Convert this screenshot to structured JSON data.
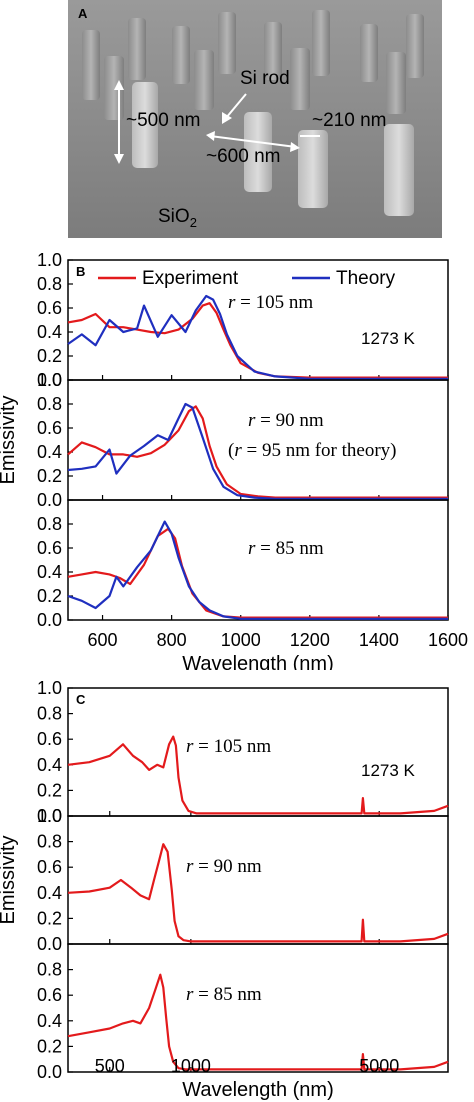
{
  "panel_a": {
    "letter": "A",
    "label_rod": "Si rod",
    "label_height": "~500 nm",
    "label_width": "~210 nm",
    "label_gap": "~600 nm",
    "label_substrate_main": "SiO",
    "label_substrate_sub": "2"
  },
  "colors": {
    "experiment": "#e31a1c",
    "theory": "#1f2fbf"
  },
  "chart_data": [
    {
      "panel": "B",
      "type": "line",
      "xlabel": "Wavelength (nm)",
      "ylabel": "Emissivity",
      "xscale": "linear",
      "xlim": [
        500,
        1600
      ],
      "xticks": [
        600,
        800,
        1000,
        1200,
        1400,
        1600
      ],
      "ylim": [
        0,
        1.0
      ],
      "legend": {
        "placement": "top",
        "entries": [
          "Experiment",
          "Theory"
        ]
      },
      "temperature_label": "1273 K",
      "subplots": [
        {
          "label_r": "r",
          "label_rest": " = 105 nm",
          "yticks": [
            "0.0",
            "0.2",
            "0.4",
            "0.6",
            "0.8",
            "1.0"
          ],
          "series": [
            {
              "name": "Experiment",
              "x": [
                500,
                540,
                580,
                620,
                660,
                700,
                740,
                780,
                820,
                860,
                890,
                910,
                930,
                950,
                970,
                1000,
                1050,
                1100,
                1200,
                1300,
                1400,
                1500,
                1600
              ],
              "y": [
                0.48,
                0.5,
                0.55,
                0.44,
                0.44,
                0.42,
                0.4,
                0.39,
                0.42,
                0.51,
                0.62,
                0.64,
                0.56,
                0.42,
                0.29,
                0.14,
                0.06,
                0.03,
                0.02,
                0.02,
                0.02,
                0.02,
                0.02
              ]
            },
            {
              "name": "Theory",
              "x": [
                500,
                540,
                580,
                620,
                660,
                700,
                720,
                760,
                800,
                840,
                870,
                900,
                920,
                940,
                960,
                990,
                1040,
                1100,
                1200,
                1300,
                1400,
                1500,
                1600
              ],
              "y": [
                0.3,
                0.38,
                0.29,
                0.5,
                0.4,
                0.43,
                0.62,
                0.36,
                0.54,
                0.4,
                0.58,
                0.7,
                0.67,
                0.55,
                0.38,
                0.2,
                0.07,
                0.03,
                0.01,
                0.01,
                0.01,
                0.01,
                0.01
              ]
            }
          ]
        },
        {
          "label_r": "r",
          "label_rest": " = 90 nm",
          "note_pre": "(",
          "note_r": "r",
          "note_rest": " = 95 nm for theory)",
          "yticks": [
            "0.0",
            "0.2",
            "0.4",
            "0.6",
            "0.8",
            "1.0"
          ],
          "series": [
            {
              "name": "Experiment",
              "x": [
                500,
                540,
                580,
                620,
                660,
                700,
                740,
                780,
                820,
                850,
                870,
                890,
                910,
                930,
                960,
                1000,
                1050,
                1100,
                1200,
                1300,
                1400,
                1500,
                1600
              ],
              "y": [
                0.38,
                0.48,
                0.44,
                0.38,
                0.38,
                0.36,
                0.39,
                0.46,
                0.58,
                0.74,
                0.78,
                0.68,
                0.45,
                0.28,
                0.13,
                0.05,
                0.03,
                0.02,
                0.02,
                0.02,
                0.02,
                0.02,
                0.02
              ]
            },
            {
              "name": "Theory",
              "x": [
                500,
                540,
                580,
                620,
                640,
                680,
                720,
                760,
                790,
                820,
                840,
                860,
                890,
                920,
                950,
                990,
                1040,
                1100,
                1200,
                1300,
                1400,
                1500,
                1600
              ],
              "y": [
                0.25,
                0.26,
                0.28,
                0.42,
                0.22,
                0.37,
                0.45,
                0.54,
                0.5,
                0.68,
                0.8,
                0.77,
                0.52,
                0.26,
                0.11,
                0.04,
                0.02,
                0.01,
                0.01,
                0.01,
                0.01,
                0.01,
                0.01
              ]
            }
          ]
        },
        {
          "label_r": "r",
          "label_rest": " = 85 nm",
          "yticks": [
            "0.0",
            "0.2",
            "0.4",
            "0.6",
            "0.8"
          ],
          "series": [
            {
              "name": "Experiment",
              "x": [
                500,
                540,
                580,
                620,
                650,
                680,
                720,
                760,
                790,
                810,
                830,
                860,
                900,
                950,
                1000,
                1100,
                1200,
                1300,
                1400,
                1500,
                1600
              ],
              "y": [
                0.36,
                0.38,
                0.4,
                0.38,
                0.35,
                0.3,
                0.46,
                0.7,
                0.76,
                0.68,
                0.45,
                0.22,
                0.08,
                0.03,
                0.02,
                0.02,
                0.02,
                0.02,
                0.02,
                0.02,
                0.02
              ]
            },
            {
              "name": "Theory",
              "x": [
                500,
                540,
                580,
                620,
                640,
                660,
                700,
                740,
                780,
                800,
                820,
                850,
                880,
                910,
                950,
                1000,
                1100,
                1200,
                1300,
                1400,
                1500,
                1600
              ],
              "y": [
                0.2,
                0.16,
                0.1,
                0.2,
                0.36,
                0.28,
                0.44,
                0.58,
                0.82,
                0.72,
                0.52,
                0.28,
                0.15,
                0.08,
                0.03,
                0.01,
                0.01,
                0.01,
                0.01,
                0.01,
                0.01,
                0.01
              ]
            }
          ]
        }
      ]
    },
    {
      "panel": "C",
      "type": "line",
      "xlabel": "Wavelength (nm)",
      "ylabel": "Emissivity",
      "xscale": "log",
      "xlim": [
        350,
        9000
      ],
      "xticks": [
        500,
        1000,
        5000
      ],
      "ylim": [
        0,
        1.0
      ],
      "temperature_label": "1273 K",
      "subplots": [
        {
          "label_r": "r",
          "label_rest": " = 105 nm",
          "yticks": [
            "0.0",
            "0.2",
            "0.4",
            "0.6",
            "0.8",
            "1.0"
          ],
          "series": [
            {
              "name": "Experiment",
              "x": [
                350,
                420,
                500,
                560,
                610,
                660,
                700,
                750,
                790,
                830,
                860,
                880,
                900,
                930,
                980,
                1050,
                1200,
                2000,
                3000,
                4000,
                4300,
                4350,
                4400,
                4450,
                4500,
                6000,
                8000,
                9000
              ],
              "y": [
                0.4,
                0.42,
                0.47,
                0.56,
                0.47,
                0.42,
                0.36,
                0.4,
                0.38,
                0.56,
                0.62,
                0.55,
                0.3,
                0.12,
                0.04,
                0.02,
                0.02,
                0.02,
                0.02,
                0.02,
                0.02,
                0.14,
                0.02,
                0.02,
                0.02,
                0.02,
                0.04,
                0.08
              ]
            }
          ]
        },
        {
          "label_r": "r",
          "label_rest": " = 90 nm",
          "yticks": [
            "0.0",
            "0.2",
            "0.4",
            "0.6",
            "0.8",
            "1.0"
          ],
          "series": [
            {
              "name": "Experiment",
              "x": [
                350,
                420,
                500,
                550,
                600,
                650,
                700,
                730,
                760,
                790,
                820,
                850,
                870,
                900,
                940,
                1000,
                1100,
                2000,
                3000,
                4000,
                4300,
                4350,
                4400,
                4450,
                4500,
                6000,
                8000,
                9000
              ],
              "y": [
                0.4,
                0.41,
                0.44,
                0.5,
                0.44,
                0.38,
                0.35,
                0.5,
                0.64,
                0.78,
                0.72,
                0.42,
                0.18,
                0.06,
                0.03,
                0.02,
                0.02,
                0.02,
                0.02,
                0.02,
                0.02,
                0.19,
                0.02,
                0.02,
                0.02,
                0.02,
                0.04,
                0.08
              ]
            }
          ]
        },
        {
          "label_r": "r",
          "label_rest": " = 85 nm",
          "yticks": [
            "0.0",
            "0.2",
            "0.4",
            "0.6",
            "0.8"
          ],
          "series": [
            {
              "name": "Experiment",
              "x": [
                350,
                420,
                500,
                560,
                610,
                650,
                700,
                740,
                770,
                790,
                810,
                830,
                860,
                900,
                960,
                1050,
                2000,
                3000,
                4000,
                4300,
                4350,
                4400,
                4450,
                4500,
                6000,
                8000,
                9000
              ],
              "y": [
                0.28,
                0.31,
                0.34,
                0.38,
                0.4,
                0.38,
                0.5,
                0.65,
                0.76,
                0.66,
                0.42,
                0.2,
                0.08,
                0.03,
                0.02,
                0.02,
                0.02,
                0.02,
                0.02,
                0.02,
                0.14,
                0.02,
                0.02,
                0.02,
                0.02,
                0.04,
                0.08
              ]
            }
          ]
        }
      ]
    }
  ]
}
